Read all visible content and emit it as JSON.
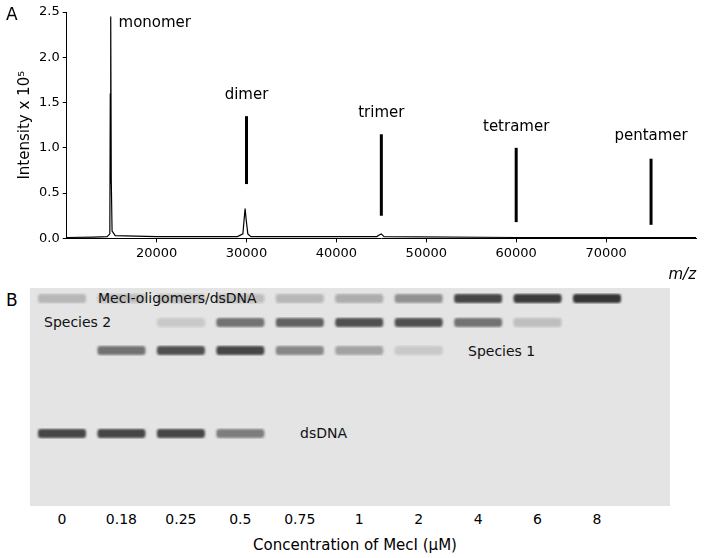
{
  "chart_data": {
    "type": "line",
    "panel": "A",
    "xlabel": "m/z",
    "ylabel": "Intensity x 10⁵",
    "x": [
      10000,
      13000,
      14500,
      14800,
      14850,
      14880,
      14920,
      14960,
      15050,
      15400,
      20000,
      29000,
      29600,
      29800,
      29850,
      29950,
      30150,
      30500,
      44500,
      44800,
      45000,
      45300,
      60000,
      80000
    ],
    "values": [
      0.01,
      0.015,
      0.02,
      0.05,
      1.6,
      0.6,
      2.45,
      0.65,
      0.08,
      0.03,
      0.02,
      0.02,
      0.05,
      0.28,
      0.33,
      0.22,
      0.05,
      0.02,
      0.02,
      0.04,
      0.05,
      0.02,
      0.01,
      0.01
    ],
    "color": "#000000",
    "xlim": [
      10000,
      80000
    ],
    "xticks": [
      20000,
      30000,
      40000,
      50000,
      60000,
      70000
    ],
    "ylim": [
      0,
      2.5
    ],
    "yticks": [
      {
        "value": 0,
        "label": "0.0"
      },
      {
        "value": 0.5,
        "label": "0.5"
      },
      {
        "value": 1,
        "label": "1.0"
      },
      {
        "value": 1.5,
        "label": "1.5"
      },
      {
        "value": 2,
        "label": "2.0"
      },
      {
        "value": 2.5,
        "label": "2.5"
      }
    ],
    "grid": false,
    "annotations": [
      {
        "text": "monomer",
        "x": 19800,
        "y": 2.3
      },
      {
        "text": "dimer",
        "x": 30000,
        "y": 1.5,
        "line": [
          0.6,
          1.35
        ]
      },
      {
        "text": "trimer",
        "x": 45000,
        "y": 1.3,
        "line": [
          0.25,
          1.15
        ]
      },
      {
        "text": "tetramer",
        "x": 60000,
        "y": 1.15,
        "line": [
          0.18,
          1.0
        ]
      },
      {
        "text": "pentamer",
        "x": 75000,
        "y": 1.05,
        "line": [
          0.15,
          0.88
        ]
      }
    ]
  },
  "gel": {
    "panel": "B",
    "bands": [
      "MecI-oligomers/dsDNA",
      "Species 2",
      "Species 1",
      "dsDNA"
    ],
    "lanes": [
      {
        "label": "0",
        "intensity": [
          0.25,
          0,
          0,
          0.85
        ]
      },
      {
        "label": "0.18",
        "intensity": [
          0.2,
          0,
          0.6,
          0.85
        ]
      },
      {
        "label": "0.25",
        "intensity": [
          0.2,
          0.15,
          0.8,
          0.85
        ]
      },
      {
        "label": "0.5",
        "intensity": [
          0.2,
          0.6,
          0.85,
          0.55
        ]
      },
      {
        "label": "0.75",
        "intensity": [
          0.25,
          0.7,
          0.5,
          0
        ]
      },
      {
        "label": "1",
        "intensity": [
          0.3,
          0.8,
          0.35,
          0
        ]
      },
      {
        "label": "2",
        "intensity": [
          0.45,
          0.8,
          0.15,
          0
        ]
      },
      {
        "label": "4",
        "intensity": [
          0.85,
          0.6,
          0,
          0
        ]
      },
      {
        "label": "6",
        "intensity": [
          0.9,
          0.2,
          0,
          0
        ]
      },
      {
        "label": "8",
        "intensity": [
          0.95,
          0,
          0,
          0
        ]
      }
    ],
    "xlabel": "Concentration of MecI (μM)"
  }
}
